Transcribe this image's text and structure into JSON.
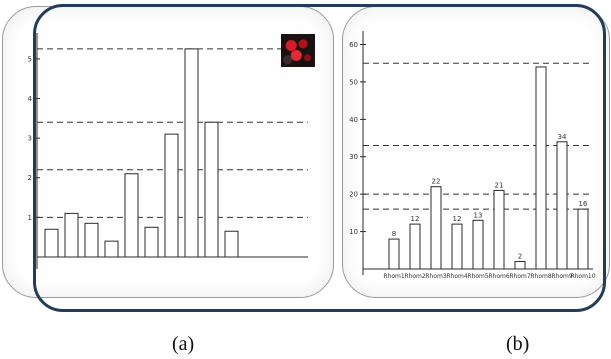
{
  "labels": {
    "a": "(a)",
    "b": "(b)"
  },
  "chart_data": [
    {
      "type": "bar",
      "panel": "a",
      "xlabel": "",
      "ylabel": "",
      "ylim": [
        0,
        5.5
      ],
      "yticks": [
        "1",
        "2",
        "3",
        "4",
        "5"
      ],
      "values": [
        0.7,
        1.1,
        0.85,
        0.4,
        2.1,
        0.75,
        3.1,
        5.25,
        3.4,
        0.65
      ],
      "top_labels": [
        "",
        "",
        "",
        "",
        "",
        "",
        "",
        "",
        "",
        ""
      ],
      "categories": [
        "",
        "",
        "",
        "",
        "",
        "",
        "",
        "",
        "",
        ""
      ],
      "reference_lines": [
        1.0,
        2.2,
        3.4,
        5.25
      ],
      "grid": false,
      "legend": "none"
    },
    {
      "type": "bar",
      "panel": "b",
      "xlabel": "",
      "ylabel": "",
      "ylim": [
        0,
        62
      ],
      "yticks": [
        "10",
        "20",
        "30",
        "40",
        "50",
        "60"
      ],
      "values": [
        8,
        12,
        22,
        12,
        13,
        21,
        2,
        54,
        34,
        16
      ],
      "top_labels": [
        "8",
        "12",
        "22",
        "12",
        "13",
        "21",
        "2",
        "",
        "34",
        "16"
      ],
      "categories": [
        "Rhom1",
        "Rhom2",
        "Rhom3",
        "Rhom4",
        "Rhom5",
        "Rhom6",
        "Rhom7",
        "Rhom8",
        "Rhom9",
        "Rhom10"
      ],
      "reference_lines": [
        16,
        20,
        33,
        55
      ],
      "grid": false,
      "legend": "none"
    }
  ]
}
